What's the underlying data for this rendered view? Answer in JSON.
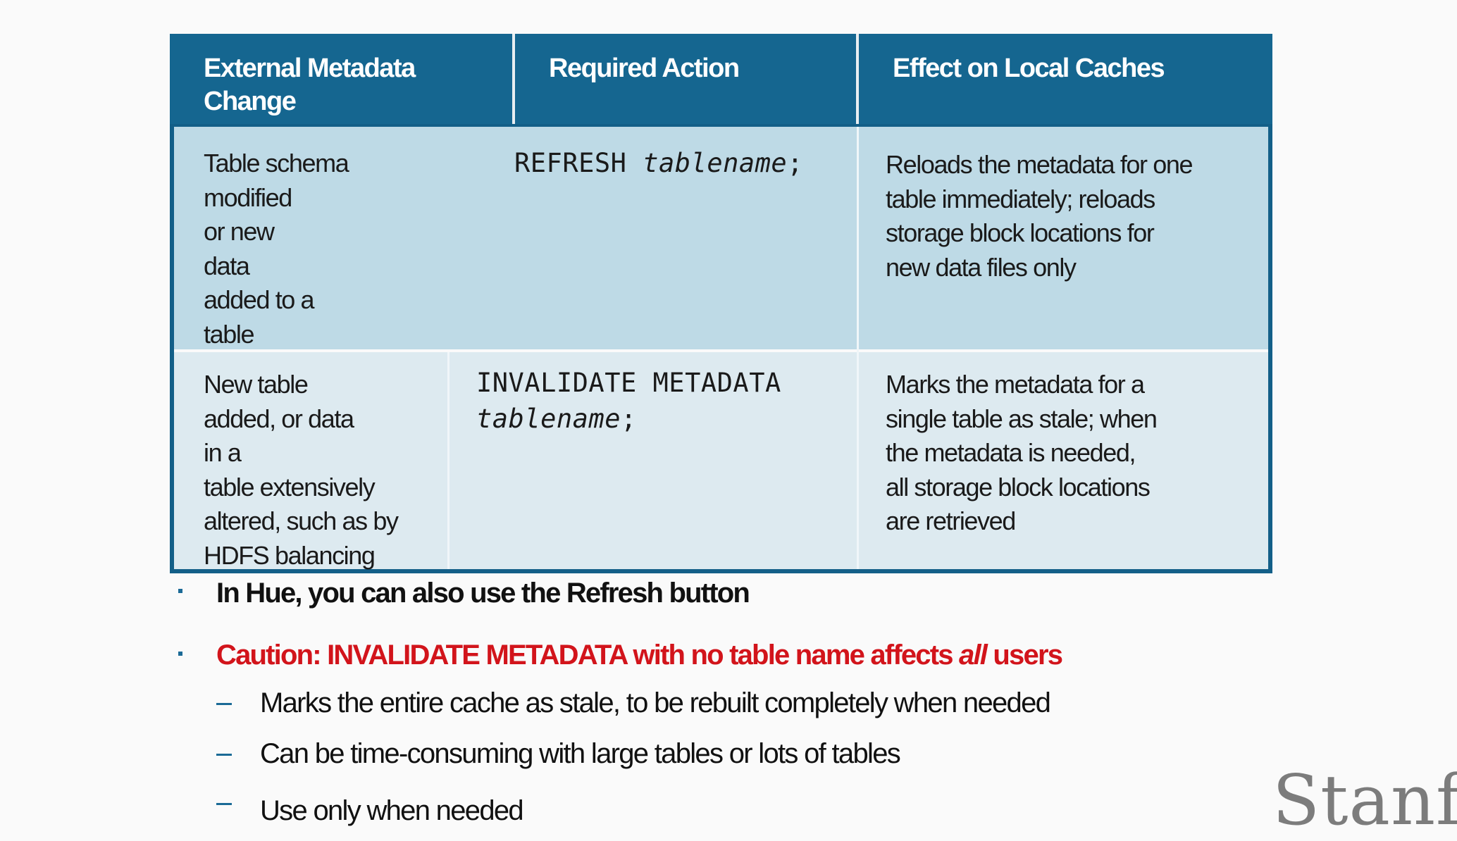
{
  "table": {
    "headers": [
      {
        "line1": "External  Metadata",
        "line2": "Change"
      },
      {
        "line1": "Required Action"
      },
      {
        "line1": "Effect on Local Caches"
      }
    ],
    "rows": [
      {
        "change": [
          "Table schema",
          "modified",
          "or new",
          "data",
          "added to a",
          "table"
        ],
        "action": {
          "keyword": "REFRESH",
          "param": "tablename",
          "end": ";"
        },
        "effect": [
          "Reloads the metadata for one",
          "table immediately; reloads",
          "storage block locations for",
          "new data files only"
        ]
      },
      {
        "change": [
          "New table",
          "added,  or data",
          "in a",
          "table extensively",
          "altered, such as by",
          "HDFS balancing"
        ],
        "action": {
          "keyword": "INVALIDATE METADATA",
          "param": "tablename",
          "end": ";"
        },
        "effect": [
          "Marks the metadata for a",
          "single table as stale; when",
          "the metadata is needed,",
          "all  storage block locations",
          "are  retrieved"
        ]
      }
    ]
  },
  "bullets": {
    "hue": "In Hue, you can also use the Refresh  button",
    "caution_prefix": "Caution: INVALIDATE   METADATA with no table name affects ",
    "caution_em": "all",
    "caution_suffix": " users",
    "subs": [
      "Marks the entire cache as stale, to be rebuilt completely when needed",
      "Can be time-consuming with large tables or lots of tables",
      "Use only when needed"
    ]
  },
  "logo": "Stanfo",
  "colors": {
    "header": "#156690",
    "row1": "#bedae6",
    "row2": "#ddeaf0",
    "caution": "#d2141b"
  }
}
